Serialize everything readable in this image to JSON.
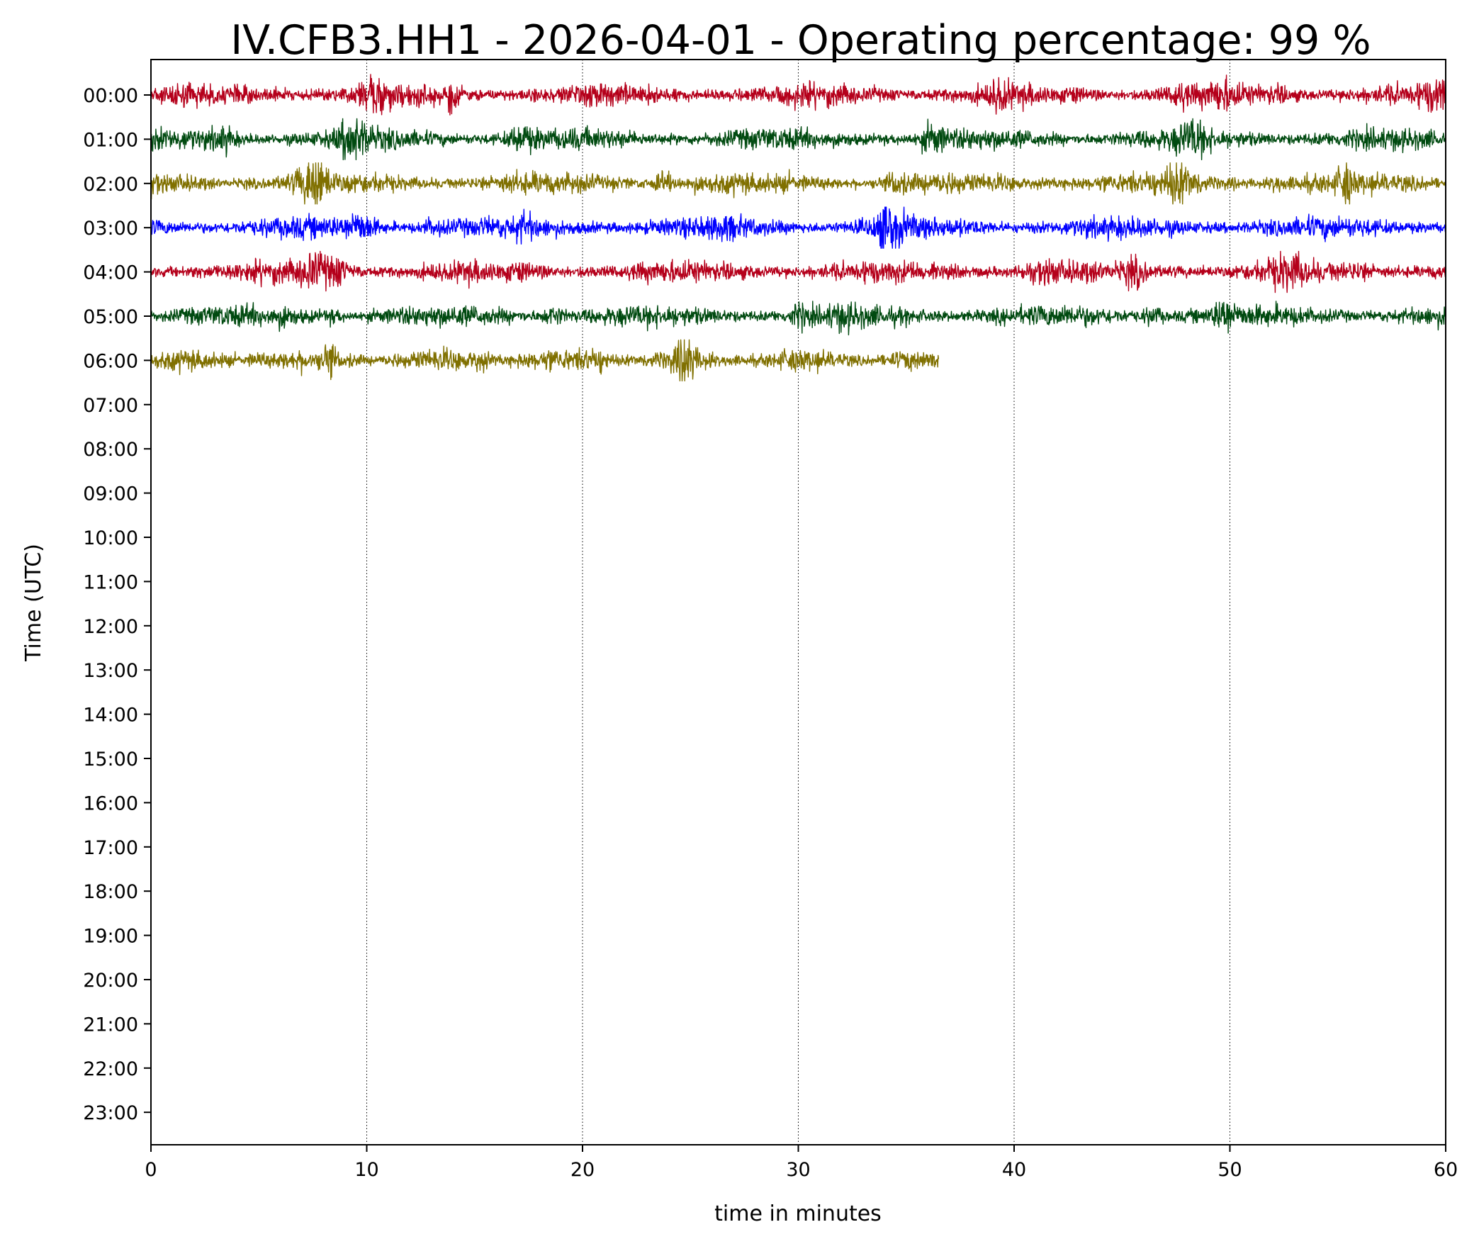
{
  "chart_data": {
    "type": "line",
    "title": "IV.CFB3.HH1 - 2026-04-01 - Operating percentage: 99 %",
    "xlabel": "time in minutes",
    "ylabel": "Time (UTC)",
    "xlim": [
      0,
      60
    ],
    "xticks": [
      "0",
      "10",
      "20",
      "30",
      "40",
      "50",
      "60"
    ],
    "yticks": [
      "00:00",
      "01:00",
      "02:00",
      "03:00",
      "04:00",
      "05:00",
      "06:00",
      "07:00",
      "08:00",
      "09:00",
      "10:00",
      "11:00",
      "12:00",
      "13:00",
      "14:00",
      "15:00",
      "16:00",
      "17:00",
      "18:00",
      "19:00",
      "20:00",
      "21:00",
      "22:00",
      "23:00"
    ],
    "grid": "vertical dotted at x ticks",
    "series": [
      {
        "hour": "00:00",
        "color": "#b5001b",
        "start_min": 0,
        "end_min": 60
      },
      {
        "hour": "01:00",
        "color": "#004a10",
        "start_min": 0,
        "end_min": 60
      },
      {
        "hour": "02:00",
        "color": "#807000",
        "start_min": 0,
        "end_min": 60
      },
      {
        "hour": "03:00",
        "color": "#0000ff",
        "start_min": 0,
        "end_min": 60
      },
      {
        "hour": "04:00",
        "color": "#b5001b",
        "start_min": 0,
        "end_min": 60
      },
      {
        "hour": "05:00",
        "color": "#004a10",
        "start_min": 0,
        "end_min": 60
      },
      {
        "hour": "06:00",
        "color": "#807000",
        "start_min": 0,
        "end_min": 36.5
      }
    ]
  }
}
